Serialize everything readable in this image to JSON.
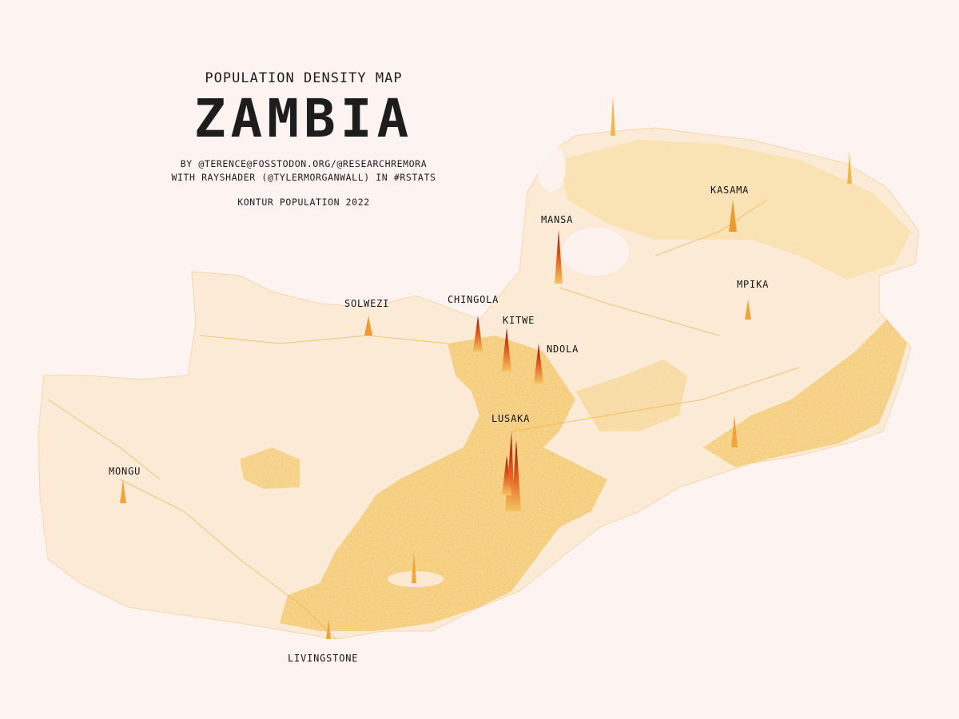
{
  "header": {
    "subtitle": "POPULATION DENSITY MAP",
    "title": "ZAMBIA",
    "credit_line1": "BY @TERENCE@FOSSTODON.ORG/@RESEARCHREMORA",
    "credit_line2": "WITH RAYSHADER (@TYLERMORGANWALL) IN #RSTATS",
    "source": "KONTUR POPULATION 2022"
  },
  "colors": {
    "background": "#fdf3f1",
    "low_density": "#f3c462",
    "mid_density": "#f0a53a",
    "high_density": "#e25a1c",
    "peak_density": "#8e1410"
  },
  "cities": [
    {
      "id": "mansa",
      "name": "MANSA",
      "relative_density": 0.55
    },
    {
      "id": "kasama",
      "name": "KASAMA",
      "relative_density": 0.25
    },
    {
      "id": "mpika",
      "name": "MPIKA",
      "relative_density": 0.12
    },
    {
      "id": "solwezi",
      "name": "SOLWEZI",
      "relative_density": 0.2
    },
    {
      "id": "chingola",
      "name": "CHINGOLA",
      "relative_density": 0.45
    },
    {
      "id": "kitwe",
      "name": "KITWE",
      "relative_density": 0.6
    },
    {
      "id": "ndola",
      "name": "NDOLA",
      "relative_density": 0.55
    },
    {
      "id": "lusaka",
      "name": "LUSAKA",
      "relative_density": 1.0
    },
    {
      "id": "mongu",
      "name": "MONGU",
      "relative_density": 0.15
    },
    {
      "id": "livingstone",
      "name": "LIVINGSTONE",
      "relative_density": 0.1
    }
  ]
}
